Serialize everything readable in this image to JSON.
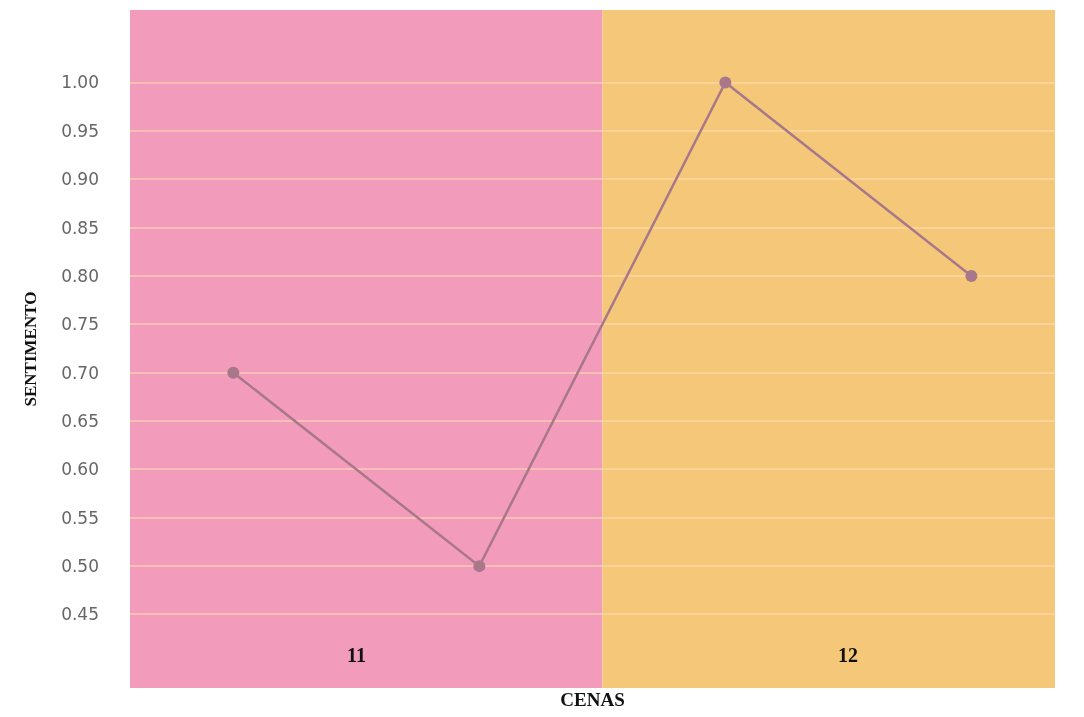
{
  "chart_data": {
    "type": "line",
    "xlabel": "CENAS",
    "ylabel": "SENTIMENTO",
    "categories": [
      null,
      null,
      null,
      null
    ],
    "series": [
      {
        "color": "#a8788a",
        "values": [
          0.7,
          0.5,
          1.0,
          0.8
        ]
      }
    ],
    "ylim": [
      0.374,
      1.075
    ],
    "yticks": [
      {
        "value": 0.45,
        "label": "0.45"
      },
      {
        "value": 0.5,
        "label": "0.50"
      },
      {
        "value": 0.55,
        "label": "0.55"
      },
      {
        "value": 0.6,
        "label": "0.60"
      },
      {
        "value": 0.65,
        "label": "0.65"
      },
      {
        "value": 0.7,
        "label": "0.70"
      },
      {
        "value": 0.75,
        "label": "0.75"
      },
      {
        "value": 0.8,
        "label": "0.80"
      },
      {
        "value": 0.85,
        "label": "0.85"
      },
      {
        "value": 0.9,
        "label": "0.90"
      },
      {
        "value": 0.95,
        "label": "0.95"
      },
      {
        "value": 1.0,
        "label": "1.00"
      }
    ],
    "annotations": [
      "11",
      "12"
    ],
    "grid": "y",
    "marker": "circle",
    "line_style": "solid",
    "tick_labels": "y"
  }
}
